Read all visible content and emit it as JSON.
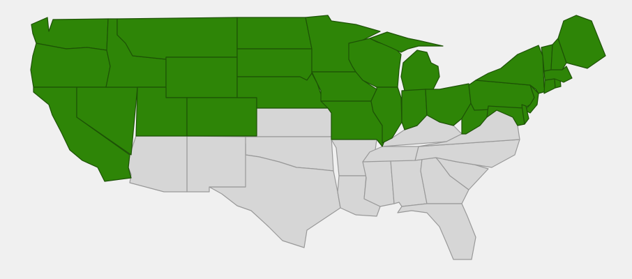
{
  "map": {
    "region": "usa-lower-48",
    "colors": {
      "background": "#f0f0f0",
      "highlighted_fill": "#2e8507",
      "highlighted_stroke": "#1d5206",
      "default_fill": "#d6d6d6",
      "default_stroke": "#999999"
    },
    "highlighted_states": [
      "WA",
      "OR",
      "CA",
      "NV",
      "ID",
      "MT",
      "WY",
      "UT",
      "CO",
      "ND",
      "SD",
      "NE",
      "MN",
      "IA",
      "MO",
      "WI",
      "IL",
      "MI",
      "IN",
      "OH",
      "WV",
      "PA",
      "NY",
      "NJ",
      "MD",
      "DE",
      "CT",
      "RI",
      "MA",
      "VT",
      "NH",
      "ME"
    ],
    "other_states": [
      "KS",
      "OK",
      "TX",
      "NM",
      "AZ",
      "AR",
      "LA",
      "MS",
      "AL",
      "GA",
      "FL",
      "SC",
      "NC",
      "TN",
      "KY",
      "VA"
    ]
  }
}
